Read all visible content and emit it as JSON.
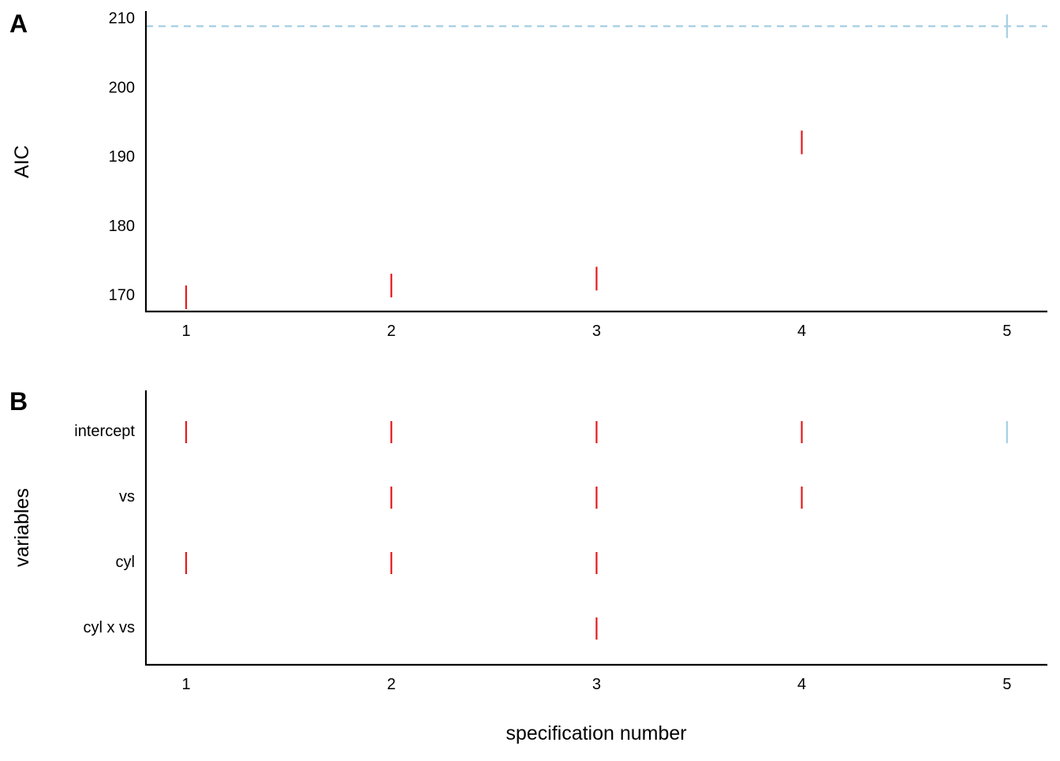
{
  "colors": {
    "best": "#e31a1c",
    "null_model": "#a6cee3",
    "axis": "#000000"
  },
  "chart_data": [
    {
      "panel": "A",
      "type": "scatter",
      "ylabel": "AIC",
      "xlabel": "",
      "x_ticks": [
        "1",
        "2",
        "3",
        "4",
        "5"
      ],
      "y_ticks": [
        "170",
        "180",
        "190",
        "200",
        "210"
      ],
      "ylim": [
        167.4,
        210.8
      ],
      "xlim": [
        0.8,
        5.2
      ],
      "x": [
        1,
        2,
        3,
        4,
        5
      ],
      "y": [
        169.6,
        171.3,
        172.3,
        192.0,
        208.8
      ],
      "point_color_keys": [
        "best",
        "best",
        "best",
        "best",
        "null_model"
      ],
      "reference_line": {
        "y": 208.8,
        "style": "dashed",
        "color_key": "null_model"
      }
    },
    {
      "panel": "B",
      "type": "scatter",
      "ylabel": "variables",
      "xlabel": "specification number",
      "x_ticks": [
        "1",
        "2",
        "3",
        "4",
        "5"
      ],
      "categories": [
        "intercept",
        "vs",
        "cyl",
        "cyl x vs"
      ],
      "xlim": [
        0.8,
        5.2
      ],
      "points": [
        {
          "x": 1,
          "variable": "intercept",
          "color_key": "best"
        },
        {
          "x": 2,
          "variable": "intercept",
          "color_key": "best"
        },
        {
          "x": 3,
          "variable": "intercept",
          "color_key": "best"
        },
        {
          "x": 4,
          "variable": "intercept",
          "color_key": "best"
        },
        {
          "x": 5,
          "variable": "intercept",
          "color_key": "null_model"
        },
        {
          "x": 2,
          "variable": "vs",
          "color_key": "best"
        },
        {
          "x": 3,
          "variable": "vs",
          "color_key": "best"
        },
        {
          "x": 4,
          "variable": "vs",
          "color_key": "best"
        },
        {
          "x": 1,
          "variable": "cyl",
          "color_key": "best"
        },
        {
          "x": 2,
          "variable": "cyl",
          "color_key": "best"
        },
        {
          "x": 3,
          "variable": "cyl",
          "color_key": "best"
        },
        {
          "x": 3,
          "variable": "cyl x vs",
          "color_key": "best"
        }
      ]
    }
  ]
}
